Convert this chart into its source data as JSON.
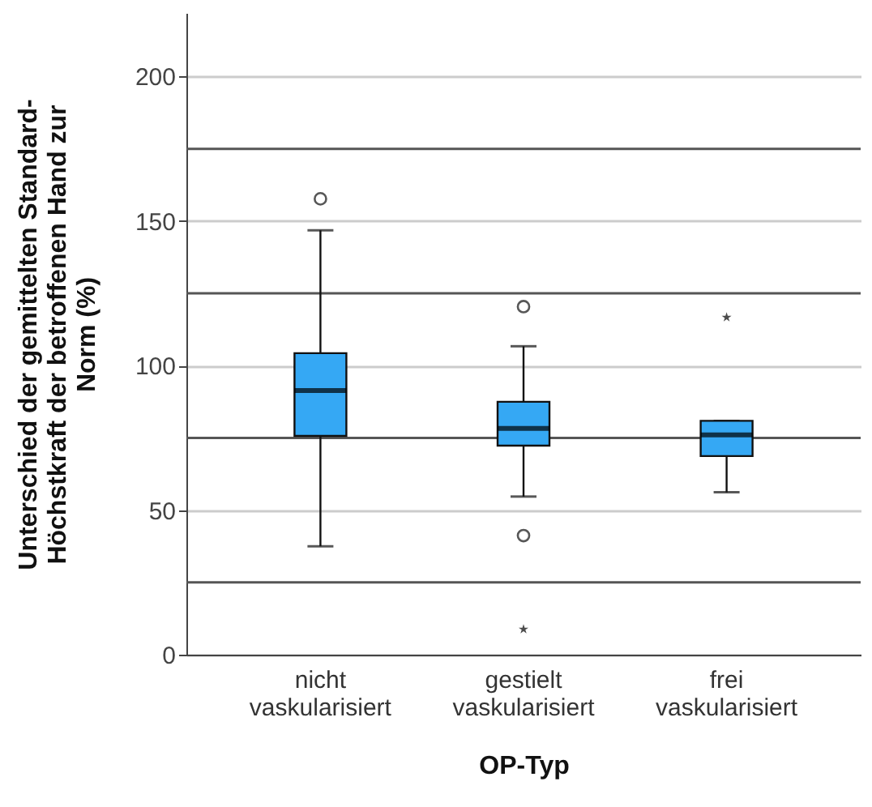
{
  "chart_data": {
    "type": "box",
    "xlabel": "OP-Typ",
    "ylabel": "Unterschied der gemittelten Standard-Höchstkraft der betroffenen Hand zur Norm (%)",
    "categories": [
      "nicht vaskularisiert",
      "gestielt vaskularisiert",
      "frei vaskularisiert"
    ],
    "series": [
      {
        "color": "#35a8f4",
        "boxes": [
          {
            "low": 37.5,
            "q1": 75.7,
            "median": 91.4,
            "q3": 104.3,
            "high": 146.8,
            "outliers": [
              157.7
            ]
          },
          {
            "low": 54.7,
            "q1": 72.3,
            "median": 78.3,
            "q3": 87.5,
            "high": 106.7,
            "outliers": [
              120.4,
              41.2
            ]
          },
          {
            "low": 56.2,
            "q1": 68.7,
            "median": 76,
            "q3": 80.9,
            "high": 80.9
          }
        ]
      },
      {
        "type": "scatter",
        "marker": "star",
        "color": "#000000",
        "x": [
          "gestielt vaskularisiert",
          "frei vaskularisiert"
        ],
        "values": [
          8.8,
          116.7
        ]
      }
    ],
    "ylim": [
      0,
      222
    ],
    "yticks": [
      0,
      50,
      100,
      150,
      200
    ],
    "grid": "y",
    "ref_lines": [
      {
        "axis": "y",
        "value": 25,
        "color": "#555555"
      },
      {
        "axis": "y",
        "value": 75,
        "color": "#555555"
      },
      {
        "axis": "y",
        "value": 125,
        "color": "#555555"
      },
      {
        "axis": "y",
        "value": 175,
        "color": "#555555"
      }
    ]
  }
}
